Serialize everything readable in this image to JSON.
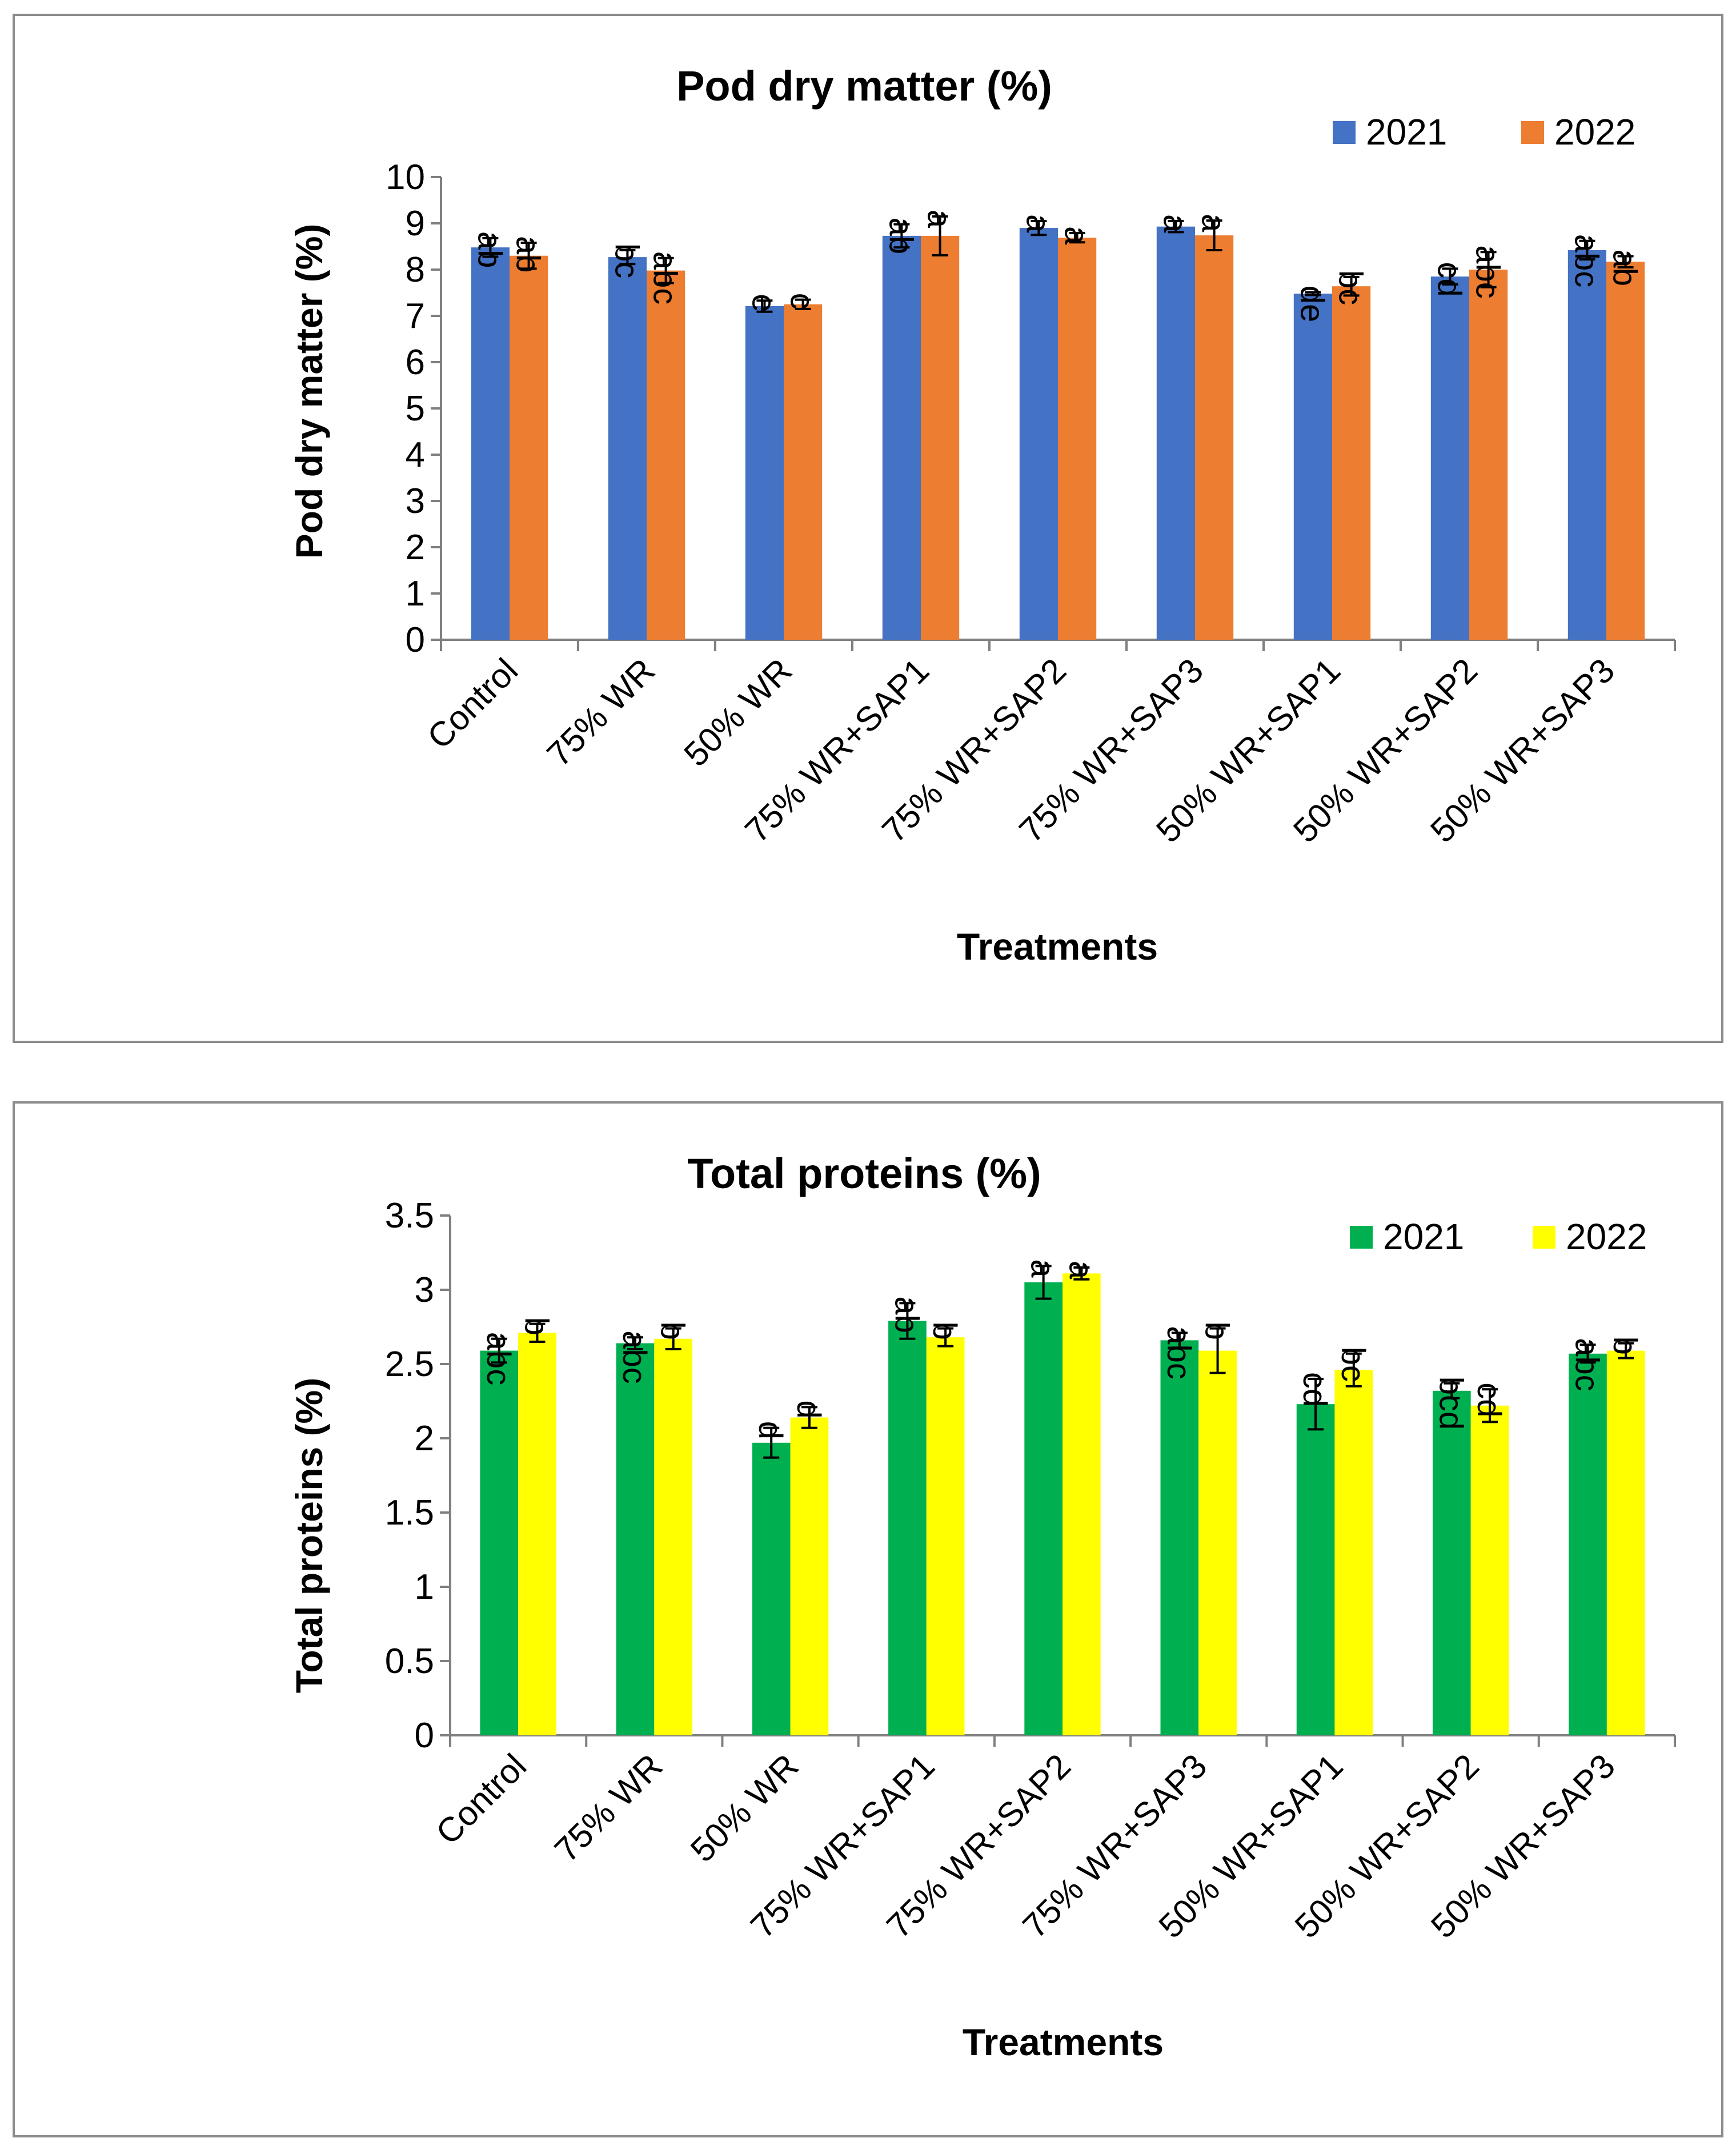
{
  "chart_data": [
    {
      "type": "bar",
      "title": "Pod dry matter (%)",
      "xlabel": "Treatments",
      "ylabel": "Pod dry matter (%)",
      "ylim": [
        0,
        10
      ],
      "yticks": [
        "0",
        "1",
        "2",
        "3",
        "4",
        "5",
        "6",
        "7",
        "8",
        "9",
        "10"
      ],
      "legend_position": "top-right",
      "categories": [
        "Control",
        "75% WR",
        "50% WR",
        "75% WR+SAP1",
        "75% WR+SAP2",
        "75% WR+SAP3",
        "50% WR+SAP1",
        "50% WR+SAP2",
        "50% WR+SAP3"
      ],
      "series": [
        {
          "name": "2021",
          "color": "#4472C4",
          "values": [
            8.48,
            8.27,
            7.21,
            8.73,
            8.9,
            8.93,
            7.48,
            7.85,
            8.42
          ],
          "errors": [
            0.2,
            0.15,
            0.12,
            0.25,
            0.15,
            0.12,
            0.03,
            0.17,
            0.2
          ],
          "letters": [
            "ab",
            "bc",
            "e",
            "ab",
            "a",
            "a",
            "de",
            "cd",
            "abc"
          ]
        },
        {
          "name": "2022",
          "color": "#ED7D31",
          "values": [
            8.3,
            7.98,
            7.25,
            8.73,
            8.69,
            8.74,
            7.64,
            8.0,
            8.17
          ],
          "errors": [
            0.28,
            0.27,
            0.1,
            0.42,
            0.1,
            0.32,
            0.2,
            0.38,
            0.12
          ],
          "letters": [
            "ab",
            "abc",
            "c",
            "a",
            "a",
            "a",
            "bc",
            "abc",
            "ab"
          ]
        }
      ]
    },
    {
      "type": "bar",
      "title": "Total proteins (%)",
      "xlabel": "Treatments",
      "ylabel": "Total proteins (%)",
      "ylim": [
        0,
        3.5
      ],
      "yticks": [
        "0",
        "0.5",
        "1",
        "1.5",
        "2",
        "2.5",
        "3",
        "3.5"
      ],
      "legend_position": "top-right",
      "categories": [
        "Control",
        "75% WR",
        "50% WR",
        "75% WR+SAP1",
        "75% WR+SAP2",
        "75% WR+SAP3",
        "50% WR+SAP1",
        "50% WR+SAP2",
        "50% WR+SAP3"
      ],
      "series": [
        {
          "name": "2021",
          "color": "#00B050",
          "values": [
            2.59,
            2.64,
            1.97,
            2.79,
            3.05,
            2.66,
            2.23,
            2.32,
            2.57
          ],
          "errors": [
            0.08,
            0.04,
            0.1,
            0.12,
            0.11,
            0.05,
            0.17,
            0.05,
            0.06
          ],
          "letters": [
            "abc",
            "abc",
            "d",
            "ab",
            "a",
            "abc",
            "cd",
            "bcd",
            "abc"
          ]
        },
        {
          "name": "2022",
          "color": "#FFFF00",
          "values": [
            2.71,
            2.67,
            2.14,
            2.68,
            3.11,
            2.59,
            2.46,
            2.22,
            2.59
          ],
          "errors": [
            0.06,
            0.07,
            0.07,
            0.06,
            0.04,
            0.15,
            0.11,
            0.11,
            0.05
          ],
          "letters": [
            "b",
            "b",
            "d",
            "b",
            "a",
            "b",
            "bc",
            "cd",
            "b"
          ]
        }
      ]
    }
  ]
}
